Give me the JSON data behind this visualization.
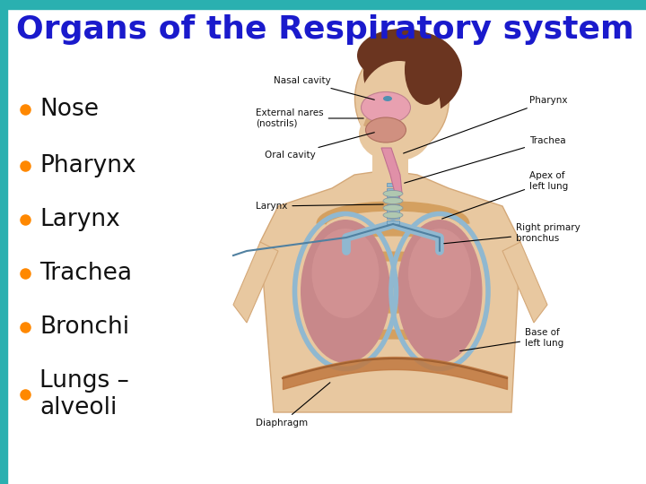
{
  "title": "Organs of the Respiratory system",
  "title_color": "#1a1acc",
  "title_fontsize": 26,
  "title_fontweight": "bold",
  "bullet_items": [
    "Nose",
    "Pharynx",
    "Larynx",
    "Trachea",
    "Bronchi",
    "Lungs –\nalveoli"
  ],
  "bullet_color": "#ff8800",
  "bullet_text_color": "#111111",
  "bullet_fontsize": 19,
  "bg_color": "#ffffff",
  "top_bar_color": "#2ab0b0",
  "left_bar_color": "#2ab0b0",
  "skin_color": "#e8c8a0",
  "skin_dark": "#d4a878",
  "hair_color": "#6b3520",
  "lung_fill": "#c8888a",
  "lung_edge": "#b07888",
  "pleura_color": "#90b8d0",
  "trachea_color": "#90b8d0",
  "diaphragm_color": "#c07840",
  "ribcage_color": "#d4a060",
  "label_fontsize": 7.5,
  "label_color": "#111111",
  "y_positions": [
    418,
    355,
    295,
    235,
    175,
    100
  ]
}
